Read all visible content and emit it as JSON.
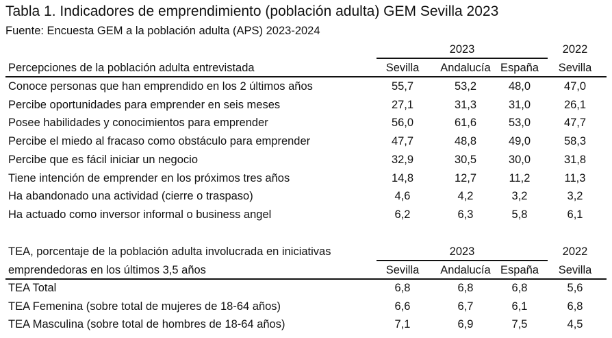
{
  "title": "Tabla 1. Indicadores de emprendimiento (población adulta) GEM Sevilla 2023",
  "source": "Fuente: Encuesta GEM a la población adulta (APS) 2023-2024",
  "table1": {
    "year_2023": "2023",
    "year_2022": "2022",
    "header_label": "Percepciones de la población adulta entrevistada",
    "columns": [
      "Sevilla",
      "Andalucía",
      "España",
      "Sevilla"
    ],
    "rows": [
      {
        "label": "Conoce personas que han emprendido en los 2 últimos años",
        "values": [
          "55,7",
          "53,2",
          "48,0",
          "47,0"
        ]
      },
      {
        "label": "Percibe oportunidades para emprender en seis meses",
        "values": [
          "27,1",
          "31,3",
          "31,0",
          "26,1"
        ]
      },
      {
        "label": "Posee habilidades y conocimientos para emprender",
        "values": [
          "56,0",
          "61,6",
          "53,0",
          "47,7"
        ]
      },
      {
        "label": "Percibe el miedo al fracaso como obstáculo para emprender",
        "values": [
          "47,7",
          "48,8",
          "49,0",
          "58,3"
        ]
      },
      {
        "label": "Percibe que es fácil iniciar un negocio",
        "values": [
          "32,9",
          "30,5",
          "30,0",
          "31,8"
        ]
      },
      {
        "label": "Tiene intención de emprender en los próximos tres años",
        "values": [
          "14,8",
          "12,7",
          "11,2",
          "11,3"
        ]
      },
      {
        "label": "Ha abandonado una actividad (cierre o traspaso)",
        "values": [
          "4,6",
          "4,2",
          "3,2",
          "3,2"
        ]
      },
      {
        "label": "Ha actuado como inversor informal o business angel",
        "values": [
          "6,2",
          "6,3",
          "5,8",
          "6,1"
        ]
      }
    ]
  },
  "table2": {
    "year_2023": "2023",
    "year_2022": "2022",
    "header_line1": "TEA, porcentaje de la población adulta involucrada en iniciativas",
    "header_line2": "emprendedoras en los últimos 3,5 años",
    "columns": [
      "Sevilla",
      "Andalucía",
      "España",
      "Sevilla"
    ],
    "rows": [
      {
        "label": "TEA Total",
        "values": [
          "6,8",
          "6,8",
          "6,8",
          "5,6"
        ]
      },
      {
        "label": "TEA Femenina (sobre total de mujeres de 18-64 años)",
        "values": [
          "6,6",
          "6,7",
          "6,1",
          "6,8"
        ]
      },
      {
        "label": "TEA Masculina (sobre total de hombres de 18-64 años)",
        "values": [
          "7,1",
          "6,9",
          "7,5",
          "4,5"
        ]
      }
    ]
  }
}
